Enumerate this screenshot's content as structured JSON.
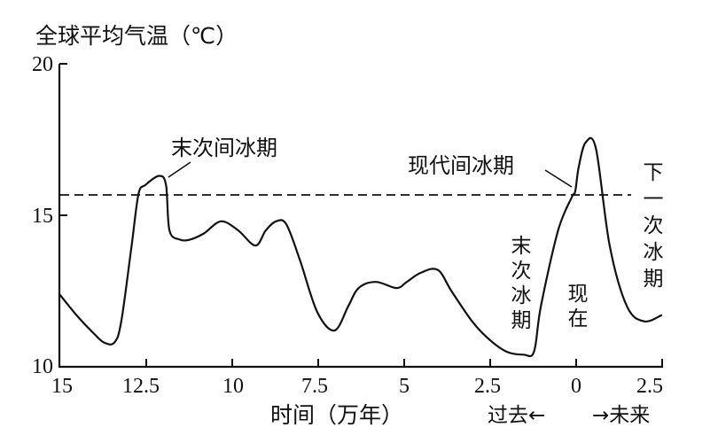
{
  "chart_data": {
    "type": "line",
    "title": "",
    "ylabel": "全球平均气温（℃）",
    "xlabel": "时间（万年）",
    "ylim": [
      10,
      20
    ],
    "xlim": [
      15,
      -2.5
    ],
    "x_ticks": [
      "15",
      "12.5",
      "10",
      "7.5",
      "5",
      "2.5",
      "0",
      "2.5"
    ],
    "y_ticks": [
      "10",
      "15",
      "20"
    ],
    "grid": false,
    "reference_line": {
      "style": "dashed",
      "y": 15.7
    },
    "direction_labels": {
      "past": "过去←",
      "future": "→未来"
    },
    "annotations": [
      {
        "text": "末次间冰期",
        "x": 12.1,
        "y": 16.3
      },
      {
        "text": "现代间冰期",
        "x": 0.05,
        "y": 15.8
      },
      {
        "text": "末次冰期",
        "x": 1.6,
        "y": 10.5,
        "orientation": "vertical"
      },
      {
        "text": "现在",
        "x": 0,
        "y": 11.5,
        "orientation": "vertical"
      },
      {
        "text": "下一次冰期",
        "x": -2.2,
        "y": 15.7,
        "orientation": "vertical"
      }
    ],
    "series": [
      {
        "name": "全球平均气温",
        "x": [
          15,
          14.5,
          14,
          13.7,
          13.4,
          13.2,
          12.9,
          12.7,
          12.5,
          12.1,
          11.9,
          11.8,
          11.5,
          11.2,
          10.8,
          10.3,
          9.8,
          9.3,
          9.0,
          8.7,
          8.4,
          8.0,
          7.5,
          7.0,
          6.6,
          6.3,
          5.8,
          5.2,
          4.9,
          4.5,
          4.0,
          3.6,
          3.0,
          2.5,
          2.0,
          1.5,
          1.2,
          1.0,
          0.5,
          0.1,
          0,
          -0.1,
          -0.3,
          -0.6,
          -1.0,
          -1.5,
          -2.0,
          -2.5
        ],
        "y": [
          12.4,
          11.7,
          11.1,
          10.8,
          10.8,
          11.5,
          14.0,
          15.7,
          16.0,
          16.3,
          16.0,
          14.5,
          14.2,
          14.2,
          14.4,
          14.8,
          14.5,
          14.0,
          14.5,
          14.8,
          14.7,
          13.5,
          11.8,
          11.2,
          12.0,
          12.6,
          12.8,
          12.6,
          12.8,
          13.1,
          13.2,
          12.5,
          11.5,
          10.9,
          10.5,
          10.4,
          10.5,
          12.0,
          14.5,
          15.6,
          15.8,
          16.6,
          17.4,
          17.2,
          14.0,
          12.0,
          11.5,
          11.7
        ]
      }
    ]
  },
  "axes": {
    "y_title": "全球平均气温（℃）",
    "x_title": "时间（万年）",
    "y_tick_labels": [
      "20",
      "15",
      "10"
    ],
    "x_tick_labels": [
      "15",
      "12.5",
      "10",
      "7.5",
      "5",
      "2.5",
      "0",
      "2.5"
    ],
    "past_label": "过去←",
    "future_label": "→未来"
  },
  "annotations": {
    "last_interglacial": "末次间冰期",
    "modern_interglacial": "现代间冰期",
    "last_glacial": [
      "末",
      "次",
      "冰",
      "期"
    ],
    "now": [
      "现",
      "在"
    ],
    "next_glacial": [
      "下",
      "一",
      "次",
      "冰",
      "期"
    ]
  }
}
